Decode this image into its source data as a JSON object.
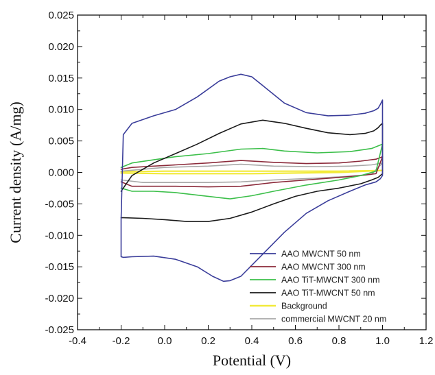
{
  "chart_data": {
    "type": "line",
    "title": "",
    "xlabel": "Potential (V)",
    "ylabel": "Current density (A/mg)",
    "xlim": [
      -0.4,
      1.2
    ],
    "ylim": [
      -0.025,
      0.025
    ],
    "x_ticks": [
      -0.4,
      -0.2,
      0.0,
      0.2,
      0.4,
      0.6,
      0.8,
      1.0,
      1.2
    ],
    "x_tick_labels": [
      "-0.4",
      "-0.2",
      "0.0",
      "0.2",
      "0.4",
      "0.6",
      "0.8",
      "1.0",
      "1.2"
    ],
    "y_ticks": [
      -0.025,
      -0.02,
      -0.015,
      -0.01,
      -0.005,
      0.0,
      0.005,
      0.01,
      0.015,
      0.02,
      0.025
    ],
    "y_tick_labels": [
      "-0.025",
      "-0.020",
      "-0.015",
      "-0.010",
      "-0.005",
      "0.000",
      "0.005",
      "0.010",
      "0.015",
      "0.020",
      "0.025"
    ],
    "grid": false,
    "legend_position": "bottom-right",
    "series": [
      {
        "name": "AAO MWCNT 50 nm",
        "color": "#3a3d9a",
        "x": [
          -0.2,
          -0.19,
          -0.15,
          -0.05,
          0.05,
          0.15,
          0.25,
          0.3,
          0.35,
          0.4,
          0.45,
          0.55,
          0.65,
          0.75,
          0.85,
          0.92,
          0.96,
          0.98,
          0.99,
          1.0,
          1.0,
          0.99,
          0.97,
          0.92,
          0.85,
          0.75,
          0.65,
          0.55,
          0.45,
          0.35,
          0.3,
          0.27,
          0.22,
          0.15,
          0.05,
          -0.05,
          -0.15,
          -0.19,
          -0.2,
          -0.2
        ],
        "y": [
          -0.0075,
          0.006,
          0.0078,
          0.009,
          0.01,
          0.012,
          0.0145,
          0.0152,
          0.0156,
          0.0152,
          0.0138,
          0.011,
          0.0095,
          0.009,
          0.0091,
          0.0094,
          0.0098,
          0.0102,
          0.0108,
          0.0115,
          -0.0005,
          -0.001,
          -0.0015,
          -0.002,
          -0.003,
          -0.0045,
          -0.0065,
          -0.0095,
          -0.013,
          -0.0165,
          -0.0172,
          -0.0173,
          -0.0165,
          -0.015,
          -0.0138,
          -0.0133,
          -0.0134,
          -0.0135,
          -0.0134,
          -0.0075
        ]
      },
      {
        "name": "AAO MWCNT 300 nm",
        "color": "#8b2a3a",
        "x": [
          -0.2,
          -0.15,
          -0.05,
          0.05,
          0.2,
          0.35,
          0.5,
          0.65,
          0.8,
          0.9,
          0.97,
          1.0,
          0.97,
          0.9,
          0.8,
          0.65,
          0.5,
          0.35,
          0.2,
          0.05,
          -0.05,
          -0.15,
          -0.2
        ],
        "y": [
          0.0005,
          0.0008,
          0.001,
          0.0012,
          0.0015,
          0.0019,
          0.0016,
          0.0014,
          0.0015,
          0.0018,
          0.0021,
          0.0025,
          -0.0002,
          -0.0005,
          -0.0008,
          -0.0012,
          -0.0016,
          -0.0022,
          -0.0023,
          -0.0022,
          -0.0022,
          -0.0022,
          -0.0015
        ]
      },
      {
        "name": "AAO TiT-MWCNT 300 nm",
        "color": "#3cbf4a",
        "x": [
          -0.2,
          -0.15,
          -0.05,
          0.05,
          0.2,
          0.35,
          0.45,
          0.55,
          0.7,
          0.85,
          0.95,
          1.0,
          0.97,
          0.9,
          0.8,
          0.65,
          0.5,
          0.4,
          0.3,
          0.2,
          0.05,
          -0.05,
          -0.15,
          -0.2
        ],
        "y": [
          0.0008,
          0.0015,
          0.002,
          0.0025,
          0.003,
          0.0037,
          0.0038,
          0.0034,
          0.0031,
          0.0033,
          0.0038,
          0.0045,
          0.0002,
          -0.0005,
          -0.0012,
          -0.002,
          -0.003,
          -0.0037,
          -0.0042,
          -0.0038,
          -0.0032,
          -0.003,
          -0.003,
          -0.0025
        ]
      },
      {
        "name": "AAO TiT-MWCNT 50 nm",
        "color": "#1a1a1a",
        "x": [
          -0.2,
          -0.15,
          -0.05,
          0.05,
          0.15,
          0.25,
          0.35,
          0.45,
          0.55,
          0.65,
          0.75,
          0.85,
          0.92,
          0.96,
          0.98,
          0.99,
          1.0,
          1.0,
          0.98,
          0.95,
          0.9,
          0.8,
          0.7,
          0.6,
          0.5,
          0.4,
          0.3,
          0.2,
          0.1,
          0.0,
          -0.1,
          -0.19,
          -0.2
        ],
        "y": [
          -0.003,
          -0.0005,
          0.0015,
          0.003,
          0.0045,
          0.0062,
          0.0077,
          0.0083,
          0.0078,
          0.007,
          0.0063,
          0.006,
          0.0062,
          0.0066,
          0.0071,
          0.0075,
          0.0078,
          -0.0002,
          -0.0008,
          -0.0012,
          -0.0018,
          -0.0025,
          -0.003,
          -0.0038,
          -0.005,
          -0.0063,
          -0.0073,
          -0.0078,
          -0.0078,
          -0.0075,
          -0.0073,
          -0.0072,
          -0.0072
        ]
      },
      {
        "name": "Background",
        "color": "#f2ea3a",
        "x": [
          -0.2,
          0.0,
          0.2,
          0.4,
          0.6,
          0.8,
          1.0,
          0.8,
          0.6,
          0.4,
          0.2,
          0.0,
          -0.2
        ],
        "y": [
          0.0001,
          0.0002,
          0.0002,
          0.0002,
          0.0002,
          0.0002,
          0.0003,
          0.0,
          -0.0001,
          -0.0002,
          -0.0002,
          -0.0002,
          -0.0001
        ]
      },
      {
        "name": "commercial MWCNT 20 nm",
        "color": "#a8a8a8",
        "x": [
          -0.2,
          -0.1,
          0.0,
          0.2,
          0.35,
          0.5,
          0.7,
          0.85,
          0.95,
          1.0,
          0.95,
          0.85,
          0.7,
          0.5,
          0.35,
          0.2,
          0.0,
          -0.1,
          -0.2
        ],
        "y": [
          0.0002,
          0.0005,
          0.0008,
          0.001,
          0.0013,
          0.001,
          0.0009,
          0.001,
          0.0012,
          0.0015,
          -0.0003,
          -0.0006,
          -0.0009,
          -0.0012,
          -0.0015,
          -0.0016,
          -0.0016,
          -0.0016,
          -0.0012
        ]
      }
    ]
  }
}
